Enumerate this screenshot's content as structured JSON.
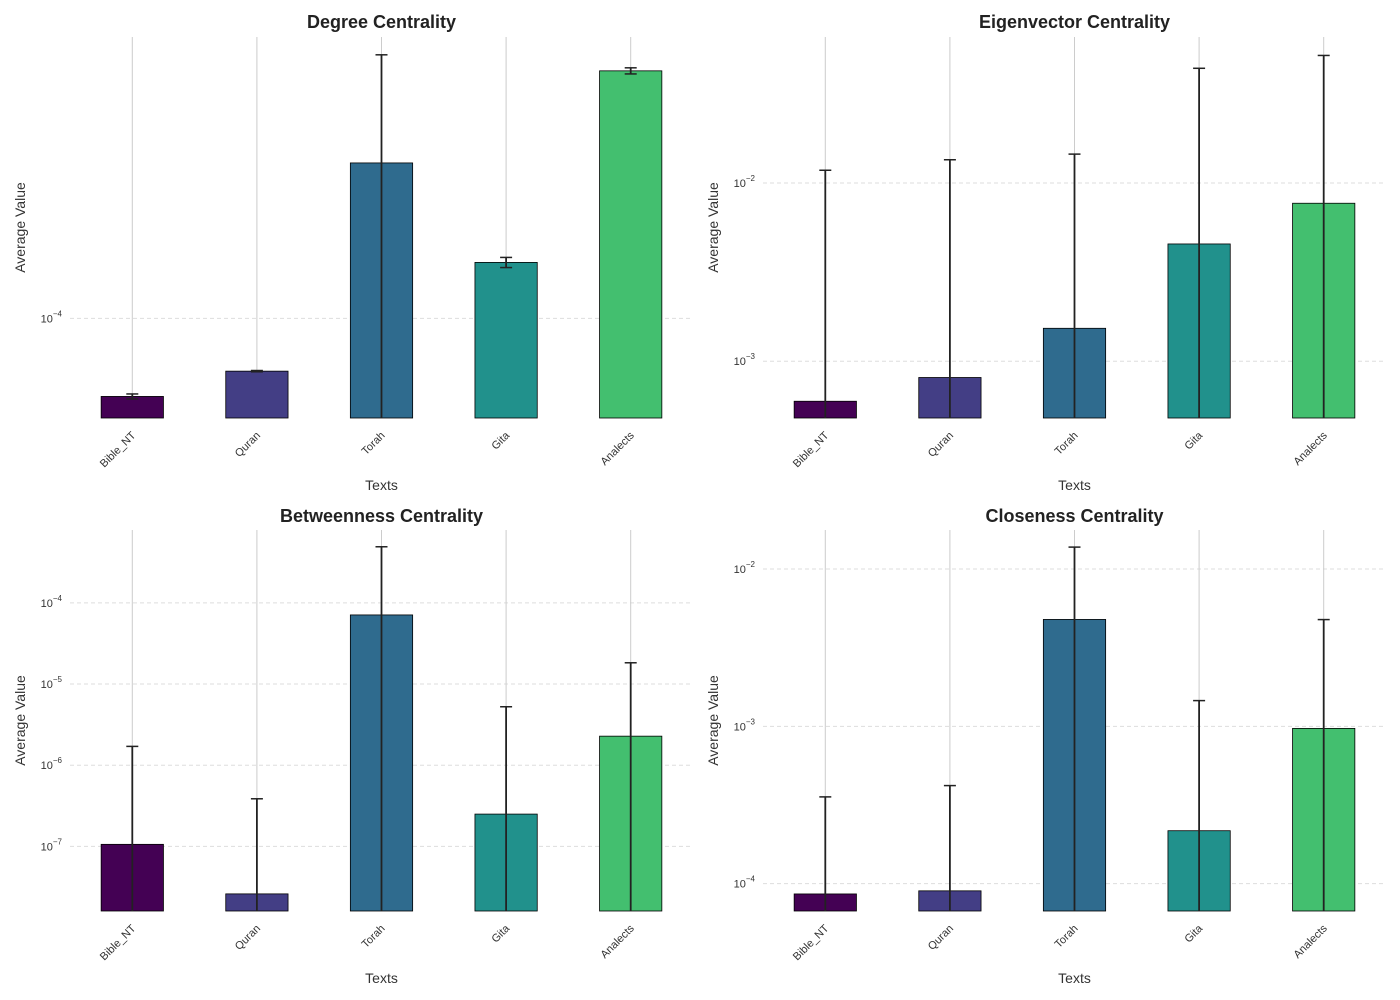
{
  "chart_data": [
    {
      "type": "bar",
      "title": "Degree Centrality",
      "xlabel": "Texts",
      "ylabel": "Average Value",
      "yscale": "log",
      "ylim": [
        5.1e-05,
        0.00067
      ],
      "yticks": [
        {
          "value": 0.0001,
          "label": "10",
          "exp": "−4"
        }
      ],
      "categories": [
        "Bible_NT",
        "Quran",
        "Torah",
        "Gita",
        "Analects"
      ],
      "values": [
        5.9e-05,
        7e-05,
        0.000286,
        0.000146,
        0.000533
      ],
      "errors": [
        1e-06,
        3e-07,
        0.000308,
        5e-06,
        1.1e-05
      ],
      "grid": true
    },
    {
      "type": "bar",
      "title": "Eigenvector Centrality",
      "xlabel": "Texts",
      "ylabel": "Average Value",
      "yscale": "log",
      "ylim": [
        0.00048,
        0.066
      ],
      "yticks": [
        {
          "value": 0.001,
          "label": "10",
          "exp": "−3"
        },
        {
          "value": 0.01,
          "label": "10",
          "exp": "−2"
        }
      ],
      "categories": [
        "Bible_NT",
        "Quran",
        "Torah",
        "Gita",
        "Analects"
      ],
      "values": [
        0.000596,
        0.00081,
        0.00153,
        0.00455,
        0.0077
      ],
      "errors": [
        0.0112,
        0.0127,
        0.013,
        0.0395,
        0.0443
      ],
      "grid": true
    },
    {
      "type": "bar",
      "title": "Betweenness Centrality",
      "xlabel": "Texts",
      "ylabel": "Average Value",
      "yscale": "log",
      "ylim": [
        1.6e-08,
        0.00079
      ],
      "yticks": [
        {
          "value": 1e-07,
          "label": "10",
          "exp": "−7"
        },
        {
          "value": 1e-06,
          "label": "10",
          "exp": "−6"
        },
        {
          "value": 1e-05,
          "label": "10",
          "exp": "−5"
        },
        {
          "value": 0.0001,
          "label": "10",
          "exp": "−4"
        }
      ],
      "categories": [
        "Bible_NT",
        "Quran",
        "Torah",
        "Gita",
        "Analects"
      ],
      "values": [
        1.06e-07,
        2.6e-08,
        7.1e-05,
        2.5e-07,
        2.28e-06
      ],
      "errors": [
        1.6e-06,
        3.6e-07,
        0.00042,
        5e-06,
        1.6e-05
      ],
      "grid": true
    },
    {
      "type": "bar",
      "title": "Closeness Centrality",
      "xlabel": "Texts",
      "ylabel": "Average Value",
      "yscale": "log",
      "ylim": [
        6.7e-05,
        0.0177
      ],
      "yticks": [
        {
          "value": 0.0001,
          "label": "10",
          "exp": "−4"
        },
        {
          "value": 0.001,
          "label": "10",
          "exp": "−3"
        },
        {
          "value": 0.01,
          "label": "10",
          "exp": "−2"
        }
      ],
      "categories": [
        "Bible_NT",
        "Quran",
        "Torah",
        "Gita",
        "Analects"
      ],
      "values": [
        8.6e-05,
        9e-05,
        0.00478,
        0.000217,
        0.00097
      ],
      "errors": [
        0.00027,
        0.00033,
        0.009,
        0.00124,
        0.0038
      ],
      "grid": true
    }
  ],
  "colors": [
    "#440154",
    "#433e85",
    "#2f6b8e",
    "#21918c",
    "#43bf6f"
  ]
}
